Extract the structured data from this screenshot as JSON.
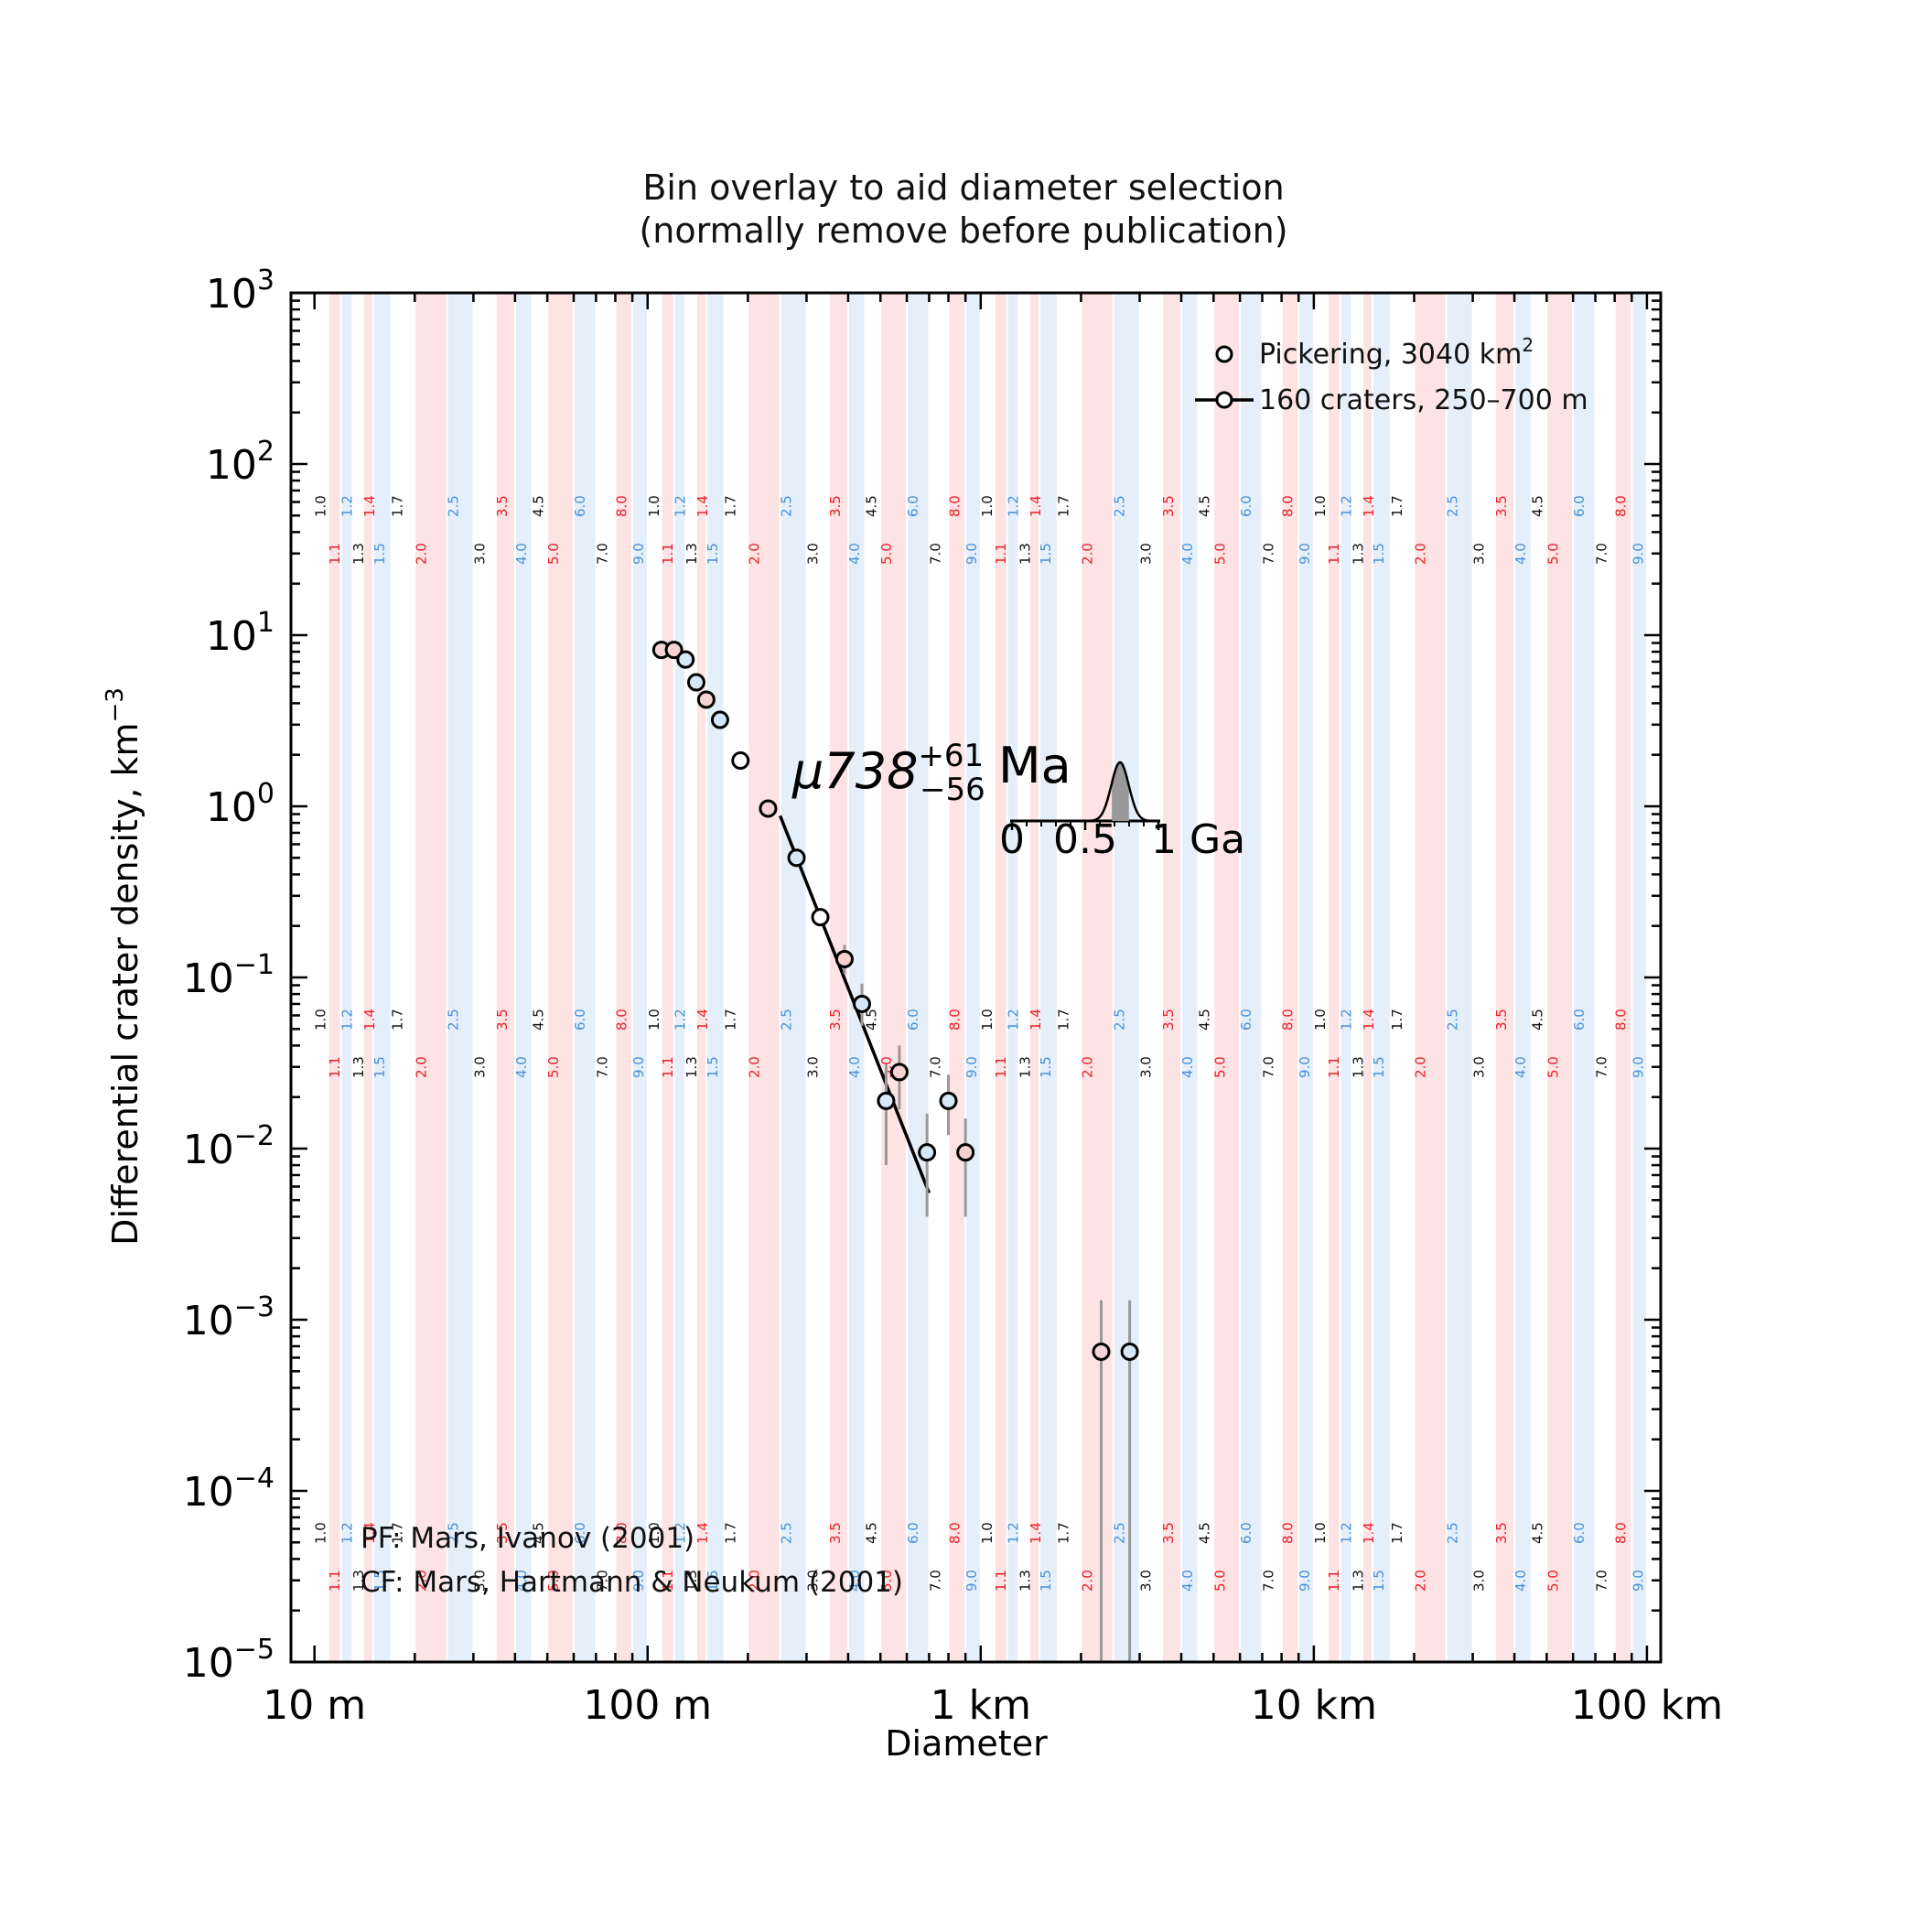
{
  "chart_data": {
    "type": "scatter",
    "title": "Bin overlay to aid diameter selection",
    "subtitle": "(normally remove before publication)",
    "xlabel": "Diameter",
    "ylabel": "Differential crater density, km",
    "ylabel_exponent": "−3",
    "x_scale": "log",
    "y_scale": "log",
    "xlim_km": [
      0.0085,
      110
    ],
    "ylim": [
      1e-05,
      1000
    ],
    "x_ticks": [
      {
        "value_km": 0.01,
        "label": "10 m"
      },
      {
        "value_km": 0.1,
        "label": "100 m"
      },
      {
        "value_km": 1,
        "label": "1 km"
      },
      {
        "value_km": 10,
        "label": "10 km"
      },
      {
        "value_km": 100,
        "label": "100 km"
      }
    ],
    "y_ticks": [
      {
        "value": 1e-05,
        "base": "10",
        "exp": "−5"
      },
      {
        "value": 0.0001,
        "base": "10",
        "exp": "−4"
      },
      {
        "value": 0.001,
        "base": "10",
        "exp": "−3"
      },
      {
        "value": 0.01,
        "base": "10",
        "exp": "−2"
      },
      {
        "value": 0.1,
        "base": "10",
        "exp": "−1"
      },
      {
        "value": 1,
        "base": "10",
        "exp": "0"
      },
      {
        "value": 10,
        "base": "10",
        "exp": "1"
      },
      {
        "value": 100,
        "base": "10",
        "exp": "2"
      },
      {
        "value": 1000,
        "base": "10",
        "exp": "3"
      }
    ],
    "bin_mantissas": [
      1.0,
      1.1,
      1.2,
      1.3,
      1.4,
      1.5,
      1.7,
      2.0,
      2.5,
      3.0,
      3.5,
      4.0,
      4.5,
      5.0,
      6.0,
      7.0,
      8.0,
      9.0
    ],
    "bin_labels": [
      "1.0",
      "1.1",
      "1.2",
      "1.3",
      "1.4",
      "1.5",
      "1.7",
      "2.0",
      "2.5",
      "3.0",
      "3.5",
      "4.0",
      "4.5",
      "5.0",
      "6.0",
      "7.0",
      "8.0",
      "9.0"
    ],
    "bin_colors": [
      "black",
      "red",
      "blue",
      "black",
      "red",
      "blue",
      "black",
      "red",
      "blue",
      "black",
      "red",
      "blue",
      "black",
      "red",
      "blue",
      "black",
      "red",
      "blue"
    ],
    "bin_decades_km": [
      0.01,
      0.1,
      1,
      10
    ],
    "colors": {
      "red_band": "#fde3e3",
      "blue_band": "#e4effa",
      "red_text": "#e8202a",
      "blue_text": "#4a90d9",
      "black_text": "#111111",
      "marker_face_red": "#f5d3d3",
      "marker_face_blue": "#d6e8f7",
      "errorbar_grey": "#999999"
    },
    "series": [
      {
        "name": "Pickering, 3040 km",
        "name_exponent": "2",
        "marker": "open-circle",
        "points": [
          {
            "x_km": 0.11,
            "y": 8.2,
            "face": "red"
          },
          {
            "x_km": 0.12,
            "y": 8.2,
            "face": "red"
          },
          {
            "x_km": 0.13,
            "y": 7.2,
            "face": "blue"
          },
          {
            "x_km": 0.14,
            "y": 5.3,
            "face": "blue"
          },
          {
            "x_km": 0.15,
            "y": 4.2,
            "face": "red"
          },
          {
            "x_km": 0.165,
            "y": 3.2,
            "face": "blue"
          },
          {
            "x_km": 0.19,
            "y": 1.85,
            "face": "white"
          },
          {
            "x_km": 0.23,
            "y": 0.97,
            "face": "red"
          },
          {
            "x_km": 0.28,
            "y": 0.5,
            "face": "blue"
          },
          {
            "x_km": 0.33,
            "y": 0.225,
            "face": "white"
          },
          {
            "x_km": 0.39,
            "y": 0.128,
            "face": "red",
            "err": [
              0.105,
              0.155
            ]
          },
          {
            "x_km": 0.44,
            "y": 0.07,
            "face": "blue",
            "err": [
              0.052,
              0.092
            ]
          },
          {
            "x_km": 0.52,
            "y": 0.019,
            "face": "blue",
            "err": [
              0.008,
              0.031
            ]
          },
          {
            "x_km": 0.57,
            "y": 0.028,
            "face": "red",
            "err": [
              0.017,
              0.04
            ]
          },
          {
            "x_km": 0.69,
            "y": 0.0095,
            "face": "blue",
            "err": [
              0.004,
              0.016
            ]
          },
          {
            "x_km": 0.8,
            "y": 0.019,
            "face": "blue",
            "err": [
              0.012,
              0.027
            ]
          },
          {
            "x_km": 0.9,
            "y": 0.0095,
            "face": "red",
            "err": [
              0.004,
              0.015
            ]
          },
          {
            "x_km": 2.3,
            "y": 0.00065,
            "face": "red",
            "err": [
              1e-05,
              0.0013
            ]
          },
          {
            "x_km": 2.8,
            "y": 0.00065,
            "face": "blue",
            "err": [
              1e-05,
              0.0013
            ]
          }
        ]
      },
      {
        "name": "160 craters, 250–700 m",
        "marker": "line-with-circle",
        "fit_line": [
          {
            "x_km": 0.25,
            "y": 0.88
          },
          {
            "x_km": 0.7,
            "y": 0.0055
          }
        ]
      }
    ],
    "annotation": {
      "prefix": "μ738",
      "sup": "+61",
      "sub": "−56",
      "unit": "Ma",
      "inset_ticks": [
        "0",
        "0.5",
        "1 Ga"
      ],
      "inset_peak_ga": 0.738
    },
    "notes": [
      "PF: Mars, Ivanov (2001)",
      "CF: Mars, Hartmann & Neukum (2001)"
    ]
  }
}
